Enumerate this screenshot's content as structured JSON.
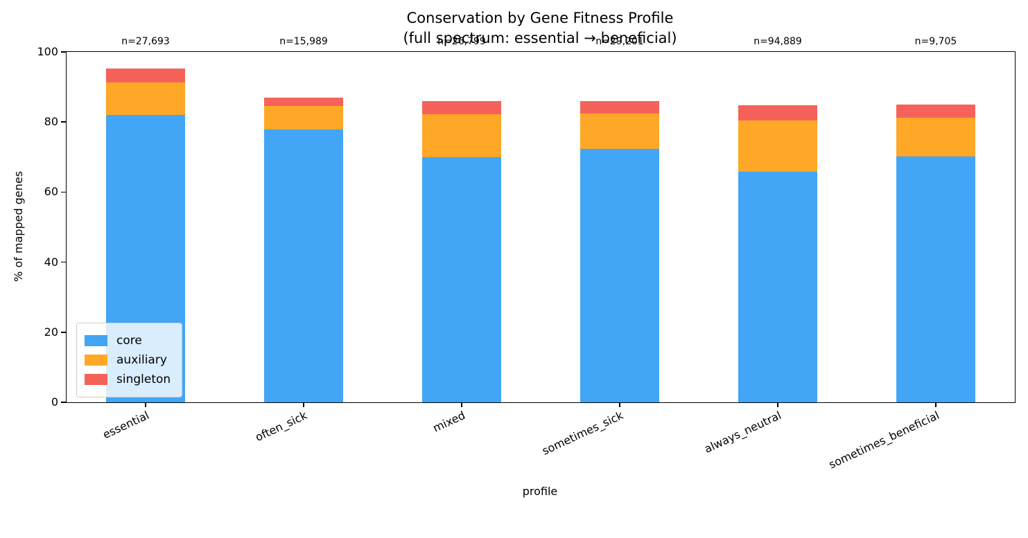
{
  "chart_data": {
    "type": "bar",
    "stacked": true,
    "title_line1": "Conservation by Gene Fitness Profile",
    "title_line2": "(full spectrum: essential → beneficial)",
    "xlabel": "profile",
    "ylabel": "% of mapped genes",
    "ylim": [
      0,
      100
    ],
    "yticks": [
      0,
      20,
      40,
      60,
      80,
      100
    ],
    "grid": false,
    "legend_position": "lower left",
    "categories": [
      "essential",
      "often_sick",
      "mixed",
      "sometimes_sick",
      "always_neutral",
      "sometimes_beneficial"
    ],
    "annotations": [
      "n=27,693",
      "n=15,989",
      "n=26,799",
      "n=29,201",
      "n=94,889",
      "n=9,705"
    ],
    "series": [
      {
        "name": "core",
        "color": "#42a5f5",
        "values": [
          82.0,
          77.9,
          70.0,
          72.3,
          65.9,
          70.2
        ]
      },
      {
        "name": "auxiliary",
        "color": "#ffa827",
        "values": [
          9.3,
          6.7,
          12.2,
          10.2,
          14.5,
          11.0
        ]
      },
      {
        "name": "singleton",
        "color": "#f5625a",
        "values": [
          4.0,
          2.4,
          3.7,
          3.5,
          4.3,
          3.8
        ]
      }
    ]
  }
}
